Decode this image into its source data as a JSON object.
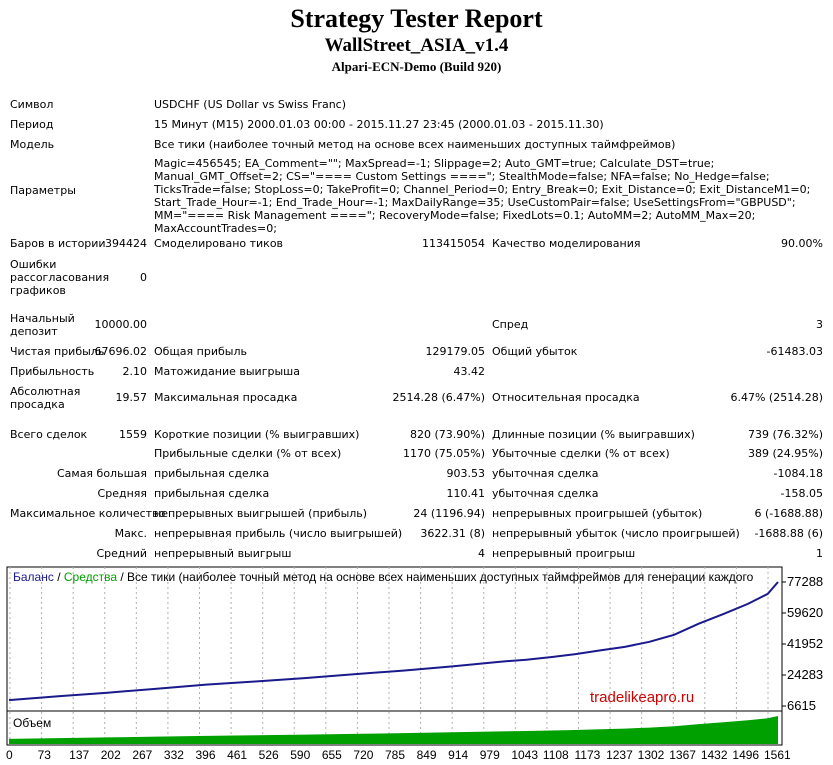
{
  "report": {
    "title": "Strategy Tester Report",
    "expert": "WallStreet_ASIA_v1.4",
    "server": "Alpari-ECN-Demo (Build 920)"
  },
  "info": {
    "symbol_label": "Символ",
    "symbol": "USDCHF (US Dollar vs Swiss Franc)",
    "period_label": "Период",
    "period": "15 Минут (M15) 2000.01.03 00:00 - 2015.11.27 23:45 (2000.01.03 - 2015.11.30)",
    "model_label": "Модель",
    "model": "Все тики (наиболее точный метод на основе всех наименьших доступных таймфреймов)",
    "params_label": "Параметры",
    "params": "Magic=456545; EA_Comment=\"\"; MaxSpread=-1; Slippage=2; Auto_GMT=true; Calculate_DST=true; Manual_GMT_Offset=2; CS=\"==== Custom Settings ====\"; StealthMode=false; NFA=false; No_Hedge=false; TicksTrade=false; StopLoss=0; TakeProfit=0; Channel_Period=0; Entry_Break=0; Exit_Distance=0; Exit_DistanceM1=0; Start_Trade_Hour=-1; End_Trade_Hour=-1; MaxDailyRange=35; UseCustomPair=false; UseSettingsFrom=\"GBPUSD\"; MM=\"==== Risk Management ====\"; RecoveryMode=false; FixedLots=0.1; AutoMM=2; AutoMM_Max=20; MaxAccountTrades=0;"
  },
  "stats": {
    "bars_label": "Баров в истории",
    "bars": "394424",
    "ticks_label": "Смоделировано тиков",
    "ticks": "113415054",
    "quality_label": "Качество моделирования",
    "quality": "90.00%",
    "mismatch_label": "Ошибки рассогласования графиков",
    "mismatch": "0",
    "deposit_label": "Начальный депозит",
    "deposit": "10000.00",
    "spread_label": "Спред",
    "spread": "3",
    "net_label": "Чистая прибыль",
    "net": "67696.02",
    "gross_profit_label": "Общая прибыль",
    "gross_profit": "129179.05",
    "gross_loss_label": "Общий убыток",
    "gross_loss": "-61483.03",
    "pf_label": "Прибыльность",
    "pf": "2.10",
    "payoff_label": "Матожидание выигрыша",
    "payoff": "43.42",
    "abs_dd_label": "Абсолютная просадка",
    "abs_dd": "19.57",
    "max_dd_label": "Максимальная просадка",
    "max_dd": "2514.28 (6.47%)",
    "rel_dd_label": "Относительная просадка",
    "rel_dd": "6.47% (2514.28)",
    "trades_label": "Всего сделок",
    "trades": "1559",
    "short_label": "Короткие позиции (% выигравших)",
    "short": "820 (73.90%)",
    "long_label": "Длинные позиции (% выигравших)",
    "long": "739 (76.32%)",
    "profit_trades_label": "Прибыльные сделки (% от всех)",
    "profit_trades": "1170 (75.05%)",
    "loss_trades_label": "Убыточные сделки (% от всех)",
    "loss_trades": "389 (24.95%)",
    "largest_label": "Самая большая",
    "largest_profit_label": "прибыльная сделка",
    "largest_profit": "903.53",
    "largest_loss_label": "убыточная сделка",
    "largest_loss": "-1084.18",
    "avg_label": "Средняя",
    "avg_profit_label": "прибыльная сделка",
    "avg_profit": "110.41",
    "avg_loss_label": "убыточная сделка",
    "avg_loss": "-158.05",
    "maxcount_label": "Максимальное количество",
    "maxcons_wins_label": "непрерывных выигрышей (прибыль)",
    "maxcons_wins": "24 (1196.94)",
    "maxcons_losses_label": "непрерывных проигрышей (убыток)",
    "maxcons_losses": "6 (-1688.88)",
    "max_label": "Макс.",
    "maxcons_profit_label": "непрерывная прибыль (число выигрышей)",
    "maxcons_profit": "3622.31 (8)",
    "maxcons_loss_label": "непрерывный убыток (число проигрышей)",
    "maxcons_loss": "-1688.88 (6)",
    "avgcons_label": "Средний",
    "avgcons_wins_label": "непрерывный выигрыш",
    "avgcons_wins": "4",
    "avgcons_losses_label": "непрерывный проигрыш",
    "avgcons_losses": "1"
  },
  "chart_data": {
    "type": "area",
    "legend_balance": "Баланс",
    "legend_sep": " / ",
    "legend_equity": "Средства",
    "legend_rest": " / Все тики (наиболее точный метод на основе всех наименьших доступных таймфреймов для генерации каждого",
    "volume_label": "Объем",
    "watermark": "tradelikeapro.ru",
    "y_ticks": [
      "77288",
      "59620",
      "41952",
      "24283",
      "6615"
    ],
    "x_ticks": [
      "0",
      "73",
      "137",
      "202",
      "267",
      "332",
      "396",
      "461",
      "526",
      "590",
      "655",
      "720",
      "785",
      "849",
      "914",
      "979",
      "1043",
      "1108",
      "1173",
      "1237",
      "1302",
      "1367",
      "1432",
      "1496",
      "1561"
    ],
    "ylim": [
      6615,
      77288
    ],
    "xlim": [
      0,
      1561
    ],
    "colors": {
      "balance": "#1a1a8c",
      "equity": "#00a000",
      "volume": "#00a000"
    },
    "series": [
      {
        "name": "Баланс",
        "x": [
          0,
          100,
          200,
          300,
          400,
          500,
          600,
          700,
          800,
          900,
          1000,
          1050,
          1100,
          1150,
          1200,
          1250,
          1300,
          1350,
          1400,
          1450,
          1500,
          1540,
          1561
        ],
        "values": [
          10000,
          12200,
          14200,
          16500,
          18800,
          20600,
          22500,
          24700,
          26800,
          29200,
          31900,
          33000,
          34500,
          36200,
          38300,
          40300,
          43200,
          47200,
          53500,
          59000,
          64800,
          70500,
          77288
        ]
      }
    ]
  }
}
